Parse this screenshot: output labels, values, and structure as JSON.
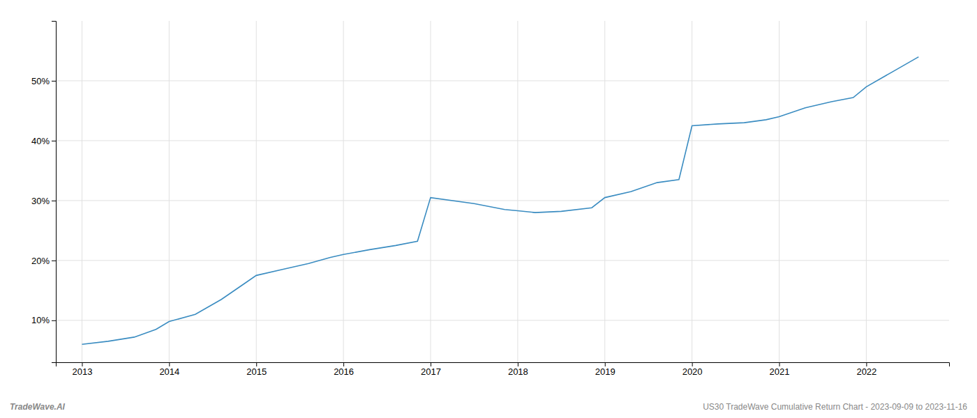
{
  "chart_data": {
    "type": "line",
    "annotations": [
      "TradeWave.AI",
      "US30 TradeWave Cumulative Return Chart - 2023-09-09 to 2023-11-16"
    ],
    "x": [
      2013.0,
      2013.3,
      2013.6,
      2013.85,
      2014.0,
      2014.3,
      2014.6,
      2014.85,
      2015.0,
      2015.3,
      2015.6,
      2015.85,
      2016.0,
      2016.3,
      2016.6,
      2016.85,
      2017.0,
      2017.5,
      2017.85,
      2018.0,
      2018.2,
      2018.5,
      2018.85,
      2019.0,
      2019.3,
      2019.6,
      2019.85,
      2020.0,
      2020.3,
      2020.6,
      2020.85,
      2021.0,
      2021.3,
      2021.6,
      2021.85,
      2022.0,
      2022.3,
      2022.6
    ],
    "values": [
      6.0,
      6.5,
      7.2,
      8.5,
      9.8,
      11.0,
      13.5,
      16.0,
      17.5,
      18.5,
      19.5,
      20.5,
      21.0,
      21.8,
      22.5,
      23.2,
      30.5,
      29.5,
      28.5,
      28.3,
      28.0,
      28.2,
      28.8,
      30.5,
      31.5,
      33.0,
      33.5,
      42.5,
      42.8,
      43.0,
      43.5,
      44.0,
      45.5,
      46.5,
      47.2,
      49.0,
      51.5,
      54.0
    ],
    "color": "#3a8cc1",
    "xlim": [
      2012.7,
      2022.95
    ],
    "ylim": [
      3,
      60
    ],
    "xticks": [
      2013,
      2014,
      2015,
      2016,
      2017,
      2018,
      2019,
      2020,
      2021,
      2022
    ],
    "yticks": [
      {
        "value": 10,
        "label": "10%"
      },
      {
        "value": 20,
        "label": "20%"
      },
      {
        "value": 30,
        "label": "30%"
      },
      {
        "value": 40,
        "label": "40%"
      },
      {
        "value": 50,
        "label": "50%"
      }
    ],
    "grid": true
  }
}
